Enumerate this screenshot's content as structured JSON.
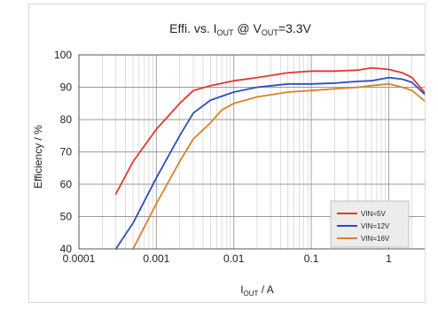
{
  "chart_data": {
    "type": "line",
    "title": "Effi. vs. I_OUT @ V_OUT=3.3V",
    "title_parts": {
      "pre": "Effi. vs. I",
      "sub1": "OUT",
      "mid": " @ V",
      "sub2": "OUT",
      "post": "=3.3V"
    },
    "xlabel": "I_OUT / A",
    "xlabel_parts": {
      "main": "I",
      "sub": "OUT",
      "post": " / A"
    },
    "ylabel": "Efficiency / %",
    "x_scale": "log",
    "xlim": [
      0.0001,
      4
    ],
    "ylim": [
      40,
      100
    ],
    "x_ticks": [
      0.0001,
      0.001,
      0.01,
      0.1,
      1
    ],
    "x_tick_labels": [
      "0.0001",
      "0.001",
      "0.01",
      "0.1",
      "1"
    ],
    "y_ticks": [
      40,
      50,
      60,
      70,
      80,
      90,
      100
    ],
    "y_tick_labels": [
      "40",
      "50",
      "60",
      "70",
      "80",
      "90",
      "100"
    ],
    "grid": true,
    "legend_position": "bottom-right",
    "series": [
      {
        "name": "VIN=5V",
        "color": "#e03a2f",
        "points": [
          [
            0.0003,
            57
          ],
          [
            0.0005,
            67
          ],
          [
            0.001,
            77
          ],
          [
            0.002,
            85
          ],
          [
            0.003,
            89
          ],
          [
            0.005,
            90.5
          ],
          [
            0.01,
            92
          ],
          [
            0.02,
            93
          ],
          [
            0.05,
            94.5
          ],
          [
            0.1,
            95
          ],
          [
            0.2,
            95
          ],
          [
            0.4,
            95.3
          ],
          [
            0.6,
            96
          ],
          [
            1,
            95.5
          ],
          [
            1.5,
            94.5
          ],
          [
            2,
            93
          ],
          [
            3,
            88
          ]
        ]
      },
      {
        "name": "VIN=12V",
        "color": "#2c4fb8",
        "points": [
          [
            0.0003,
            40
          ],
          [
            0.0005,
            48
          ],
          [
            0.001,
            62
          ],
          [
            0.002,
            75
          ],
          [
            0.003,
            82
          ],
          [
            0.005,
            86
          ],
          [
            0.01,
            88.5
          ],
          [
            0.02,
            90
          ],
          [
            0.05,
            91
          ],
          [
            0.1,
            91
          ],
          [
            0.2,
            91.3
          ],
          [
            0.4,
            91.8
          ],
          [
            0.6,
            92
          ],
          [
            1,
            93
          ],
          [
            1.5,
            92.5
          ],
          [
            2,
            91.5
          ],
          [
            3,
            87.5
          ]
        ]
      },
      {
        "name": "VIN=16V",
        "color": "#d9822b",
        "points": [
          [
            0.0005,
            40
          ],
          [
            0.001,
            54
          ],
          [
            0.002,
            67
          ],
          [
            0.003,
            74
          ],
          [
            0.005,
            79
          ],
          [
            0.007,
            83
          ],
          [
            0.01,
            85
          ],
          [
            0.02,
            87
          ],
          [
            0.05,
            88.5
          ],
          [
            0.1,
            89
          ],
          [
            0.2,
            89.5
          ],
          [
            0.4,
            90
          ],
          [
            0.6,
            90.5
          ],
          [
            1,
            91
          ],
          [
            1.5,
            90
          ],
          [
            2,
            89
          ],
          [
            3,
            85.5
          ]
        ]
      }
    ]
  }
}
